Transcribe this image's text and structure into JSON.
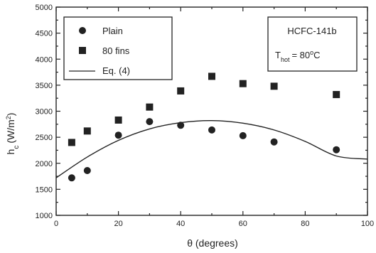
{
  "chart_data": {
    "type": "scatter",
    "xlabel": "θ  (degrees)",
    "ylabel": "h",
    "ylabel_sub": "c",
    "ylabel_unit": "(W/m",
    "ylabel_sup": "2",
    "ylabel_close": ")",
    "xlim": [
      0,
      100
    ],
    "ylim": [
      1000,
      5000
    ],
    "x_ticks": [
      0,
      20,
      40,
      60,
      80,
      100
    ],
    "y_ticks": [
      1000,
      1500,
      2000,
      2500,
      3000,
      3500,
      4000,
      4500,
      5000
    ],
    "grid": false,
    "legend_position": "top-left",
    "series": [
      {
        "name": "Plain",
        "marker": "circle",
        "points": [
          [
            5,
            1720
          ],
          [
            10,
            1860
          ],
          [
            20,
            2540
          ],
          [
            30,
            2800
          ],
          [
            40,
            2730
          ],
          [
            50,
            2640
          ],
          [
            60,
            2530
          ],
          [
            70,
            2410
          ],
          [
            90,
            2260
          ]
        ]
      },
      {
        "name": "80 fins",
        "marker": "square",
        "points": [
          [
            5,
            2400
          ],
          [
            10,
            2620
          ],
          [
            20,
            2830
          ],
          [
            30,
            3080
          ],
          [
            40,
            3390
          ],
          [
            50,
            3670
          ],
          [
            60,
            3530
          ],
          [
            70,
            3480
          ],
          [
            90,
            3320
          ]
        ]
      },
      {
        "name": "Eq. (4)",
        "marker": "line",
        "points": [
          [
            0,
            1720
          ],
          [
            10,
            2120
          ],
          [
            20,
            2440
          ],
          [
            30,
            2660
          ],
          [
            40,
            2780
          ],
          [
            50,
            2820
          ],
          [
            60,
            2770
          ],
          [
            70,
            2640
          ],
          [
            80,
            2420
          ],
          [
            90,
            2140
          ],
          [
            100,
            2080
          ]
        ]
      }
    ],
    "annotation": {
      "fluid": "HCFC-141b",
      "temp_symbol": "T",
      "temp_sub": "hot",
      "temp_value": "= 80",
      "temp_deg": "o",
      "temp_unit": "C"
    }
  },
  "colors": {
    "ink": "#222222",
    "background": "#ffffff"
  }
}
